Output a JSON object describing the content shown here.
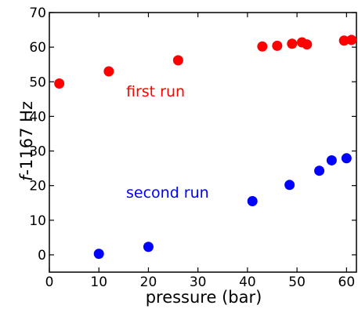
{
  "chart_data": {
    "type": "scatter",
    "title": "",
    "xlabel": "pressure (bar)",
    "ylabel_italic": "f",
    "ylabel_rest": "-1167 Hz",
    "xlim": [
      0,
      62
    ],
    "ylim": [
      -5,
      70
    ],
    "xticks": [
      0,
      10,
      20,
      30,
      40,
      50,
      60
    ],
    "yticks": [
      0,
      10,
      20,
      30,
      40,
      50,
      60,
      70
    ],
    "grid": false,
    "legend": "none",
    "series": [
      {
        "color": "#ff0000",
        "x": [
          2,
          12,
          26,
          43,
          46,
          49,
          51,
          52,
          59.5,
          61
        ],
        "y": [
          49.5,
          53,
          56.2,
          60.2,
          60.4,
          61,
          61.4,
          60.8,
          61.9,
          62.1
        ]
      },
      {
        "color": "#0000ff",
        "x": [
          10,
          20,
          41,
          48.5,
          54.5,
          57,
          60
        ],
        "y": [
          0.3,
          2.3,
          15.5,
          20.2,
          24.3,
          27.3,
          27.9
        ]
      }
    ],
    "annotations": [
      {
        "text": "first run",
        "x": 15.5,
        "y": 45.8,
        "color": "#ff0000"
      },
      {
        "text": "second run",
        "x": 15.5,
        "y": 16.5,
        "color": "#0000ff"
      }
    ]
  }
}
